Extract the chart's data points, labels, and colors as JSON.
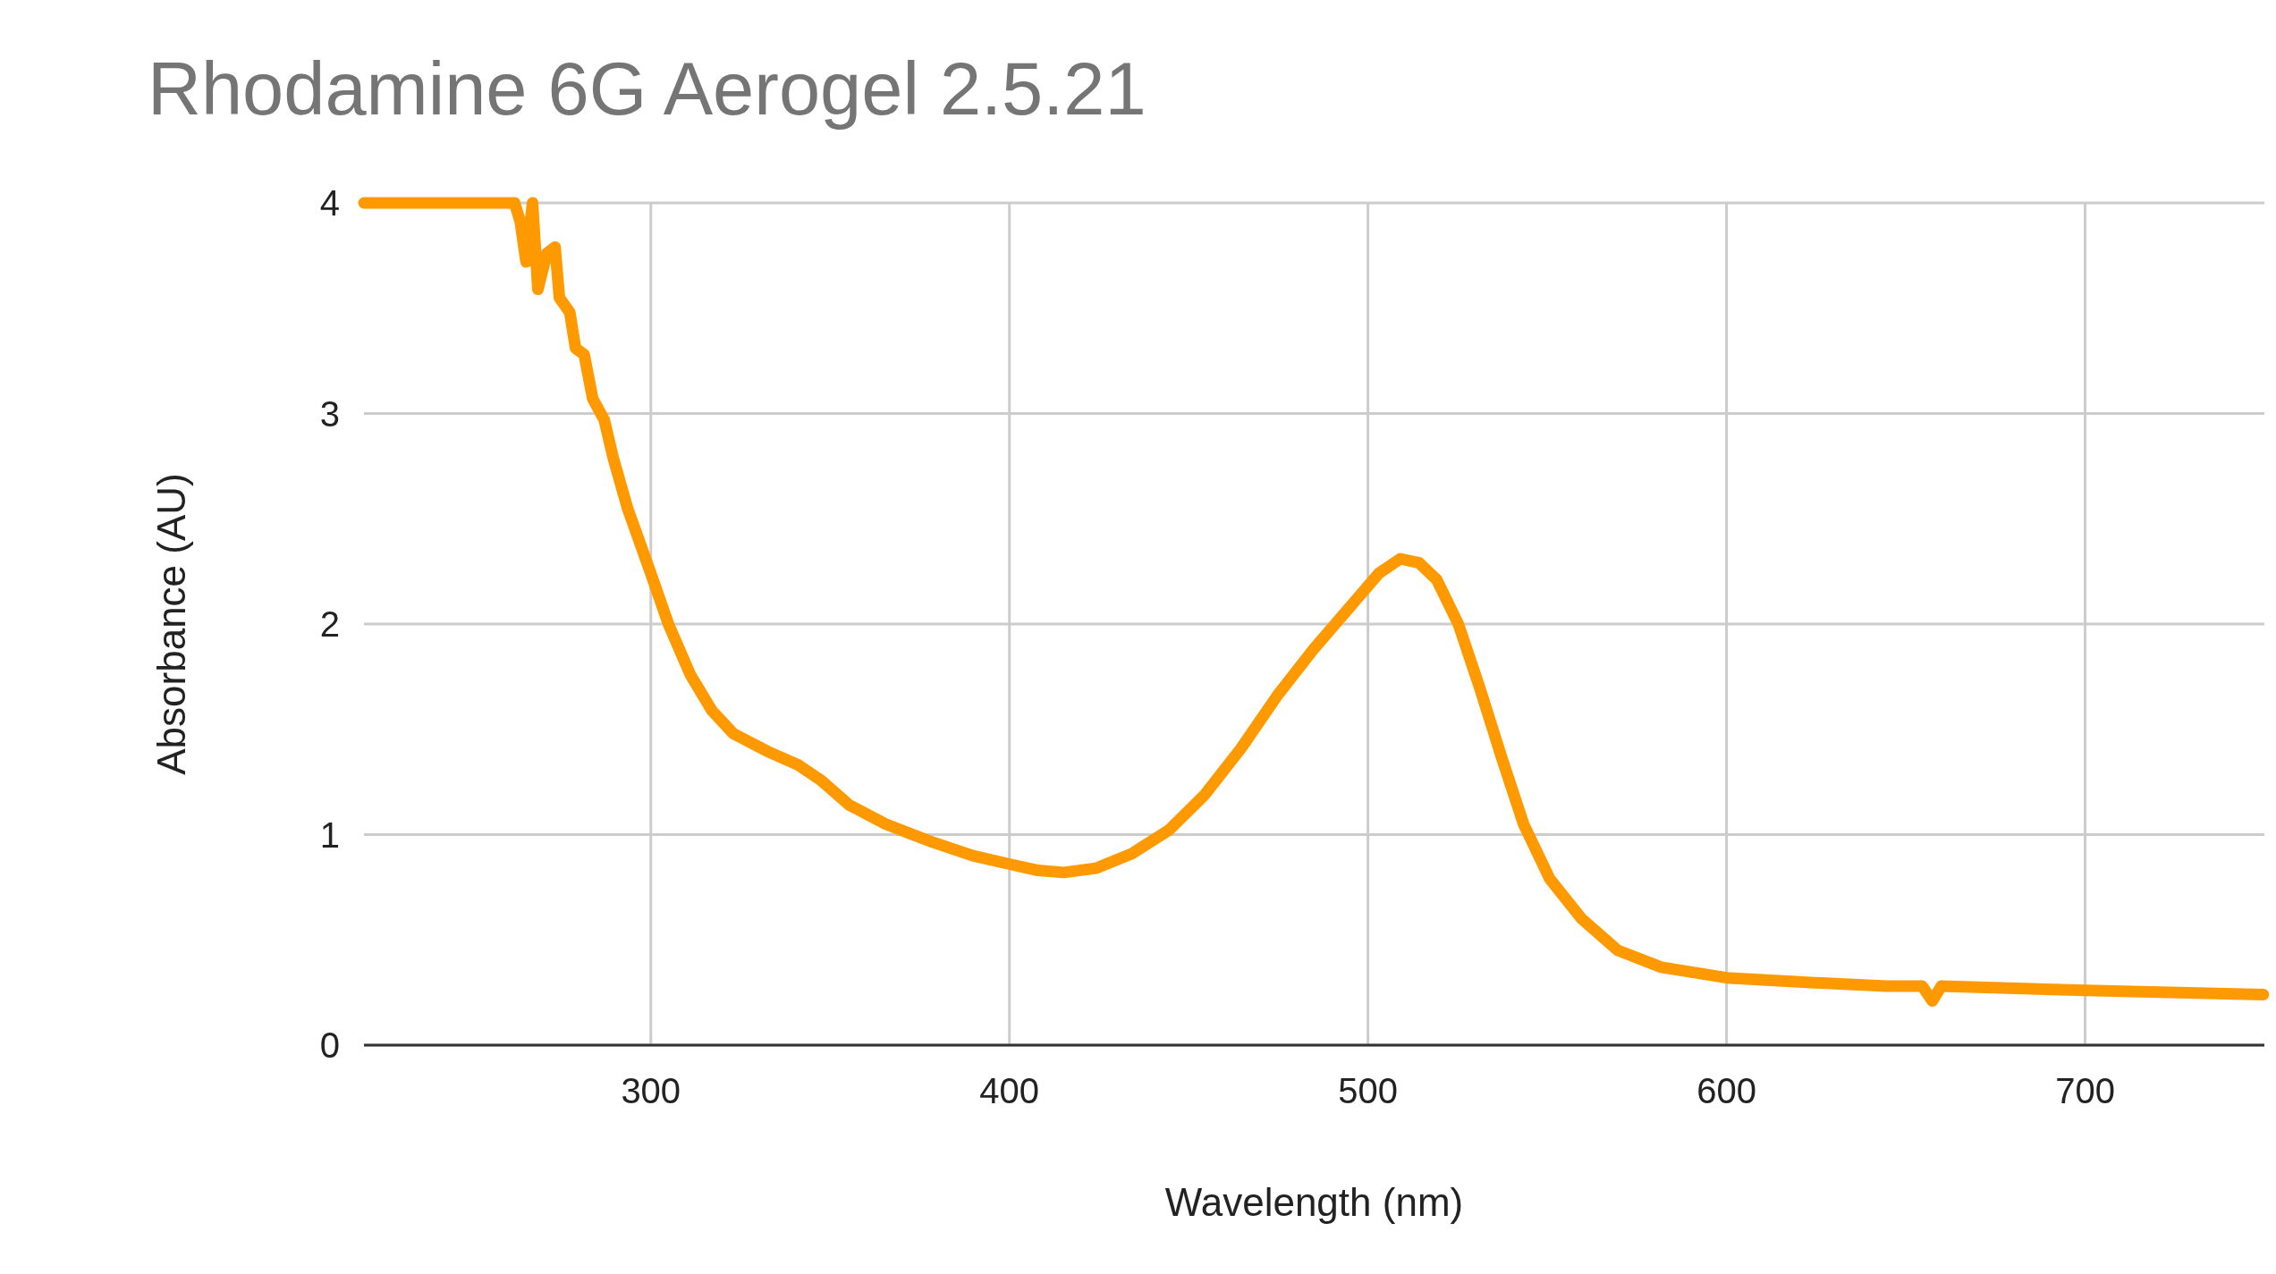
{
  "chart_data": {
    "type": "line",
    "title": "Rhodamine 6G Aerogel 2.5.21",
    "xlabel": "Wavelength (nm)",
    "ylabel": "Absorbance (AU)",
    "xlim": [
      220,
      750
    ],
    "xticks": [
      300,
      400,
      500,
      600,
      700
    ],
    "ylim": [
      0,
      4
    ],
    "yticks": [
      0,
      1,
      2,
      3,
      4
    ],
    "grid": true,
    "line_style": "solid",
    "series": [
      {
        "color": "#ff9900",
        "x": [
          220,
          262,
          263.6,
          265.2,
          267,
          268.5,
          271,
          273.3,
          274.5,
          277.4,
          279,
          281.4,
          283.8,
          287,
          289.5,
          293.5,
          300,
          304.9,
          311,
          317,
          323,
          333.2,
          341.2,
          347.3,
          355.4,
          365.5,
          377.6,
          389.8,
          400,
          408,
          415.2,
          424.1,
          434.2,
          444.4,
          454.5,
          464.6,
          474.7,
          484.8,
          494.9,
          503,
          509,
          514.3,
          519.2,
          525.2,
          531.3,
          537.4,
          543.4,
          550.7,
          559.6,
          569.7,
          581.8,
          600,
          620.2,
          644.5,
          654.6,
          657.4,
          659.9,
          700,
          749.7
        ],
        "values": [
          4,
          4,
          3.91,
          3.72,
          4,
          3.59,
          3.76,
          3.79,
          3.55,
          3.48,
          3.31,
          3.28,
          3.07,
          2.97,
          2.79,
          2.55,
          2.24,
          2.0,
          1.76,
          1.59,
          1.48,
          1.39,
          1.33,
          1.26,
          1.14,
          1.05,
          0.97,
          0.9,
          0.86,
          0.83,
          0.82,
          0.84,
          0.91,
          1.02,
          1.19,
          1.41,
          1.66,
          1.88,
          2.08,
          2.24,
          2.31,
          2.29,
          2.21,
          2.0,
          1.69,
          1.36,
          1.05,
          0.79,
          0.6,
          0.45,
          0.37,
          0.32,
          0.3,
          0.28,
          0.28,
          0.21,
          0.28,
          0.26,
          0.24
        ]
      }
    ]
  }
}
